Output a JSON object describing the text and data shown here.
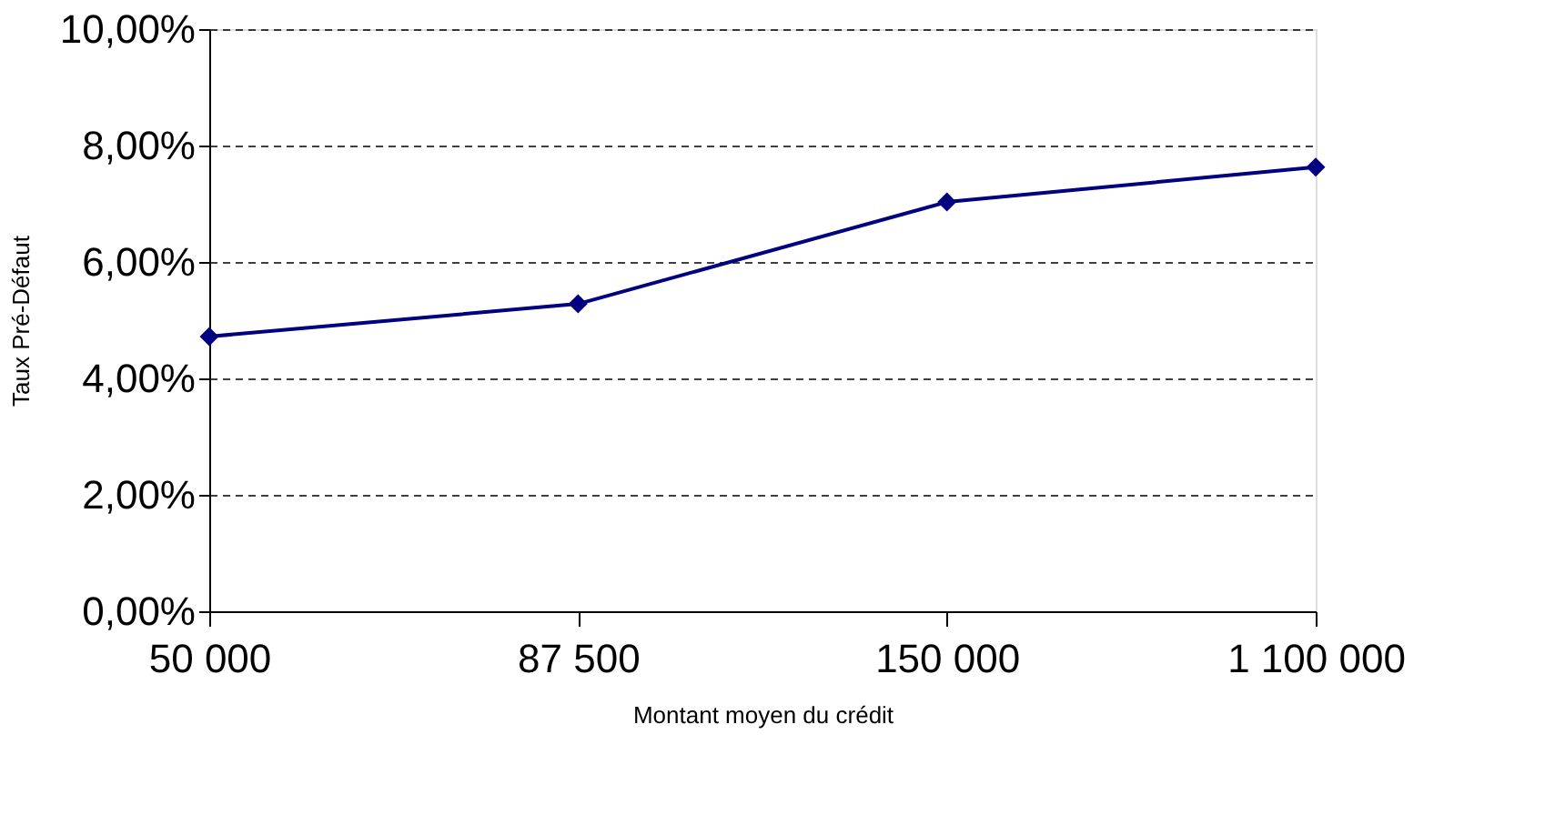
{
  "chart_data": {
    "type": "line",
    "xlabel": "Montant moyen du crédit",
    "ylabel": "Taux Pré-Défaut",
    "categories": [
      "50 000",
      "87 500",
      "150 000",
      "1 100 000"
    ],
    "series": [
      {
        "color": "#000080",
        "values": [
          4.72,
          5.28,
          7.03,
          7.63
        ]
      }
    ],
    "ylim": [
      0,
      10
    ],
    "yticks": [
      {
        "value": 0,
        "label": "0,00%"
      },
      {
        "value": 2,
        "label": "2,00%"
      },
      {
        "value": 4,
        "label": "4,00%"
      },
      {
        "value": 6,
        "label": "6,00%"
      },
      {
        "value": 8,
        "label": "8,00%"
      },
      {
        "value": 10,
        "label": "10,00%"
      }
    ],
    "grid": "y",
    "marker": "diamond",
    "line_style": "solid",
    "legend": false
  }
}
